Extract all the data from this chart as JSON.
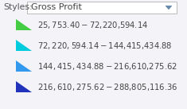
{
  "title_label": "Styles:",
  "dropdown_text": "Gross Profit",
  "legend_items": [
    {
      "label": "$25,753.40 - $72,220,594.14",
      "color": "#44cc44"
    },
    {
      "label": "$72,220,594.14 - $144,415,434.88",
      "color": "#00ccdd"
    },
    {
      "label": "$144,415,434.88 - $216,610,275.62",
      "color": "#3399ee"
    },
    {
      "label": "$216,610,275.62 - $288,805,116.36",
      "color": "#2233bb"
    }
  ],
  "background_color": "#f4f4f8",
  "dropdown_bg": "#ffffff",
  "dropdown_border": "#bbbbbb",
  "text_color": "#444444",
  "styles_color": "#555555",
  "arrow_color": "#6688aa",
  "font_size": 7.2,
  "styles_font_size": 7.8,
  "dropdown_font_size": 8.0,
  "fig_width": 2.35,
  "fig_height": 1.37,
  "dpi": 100
}
